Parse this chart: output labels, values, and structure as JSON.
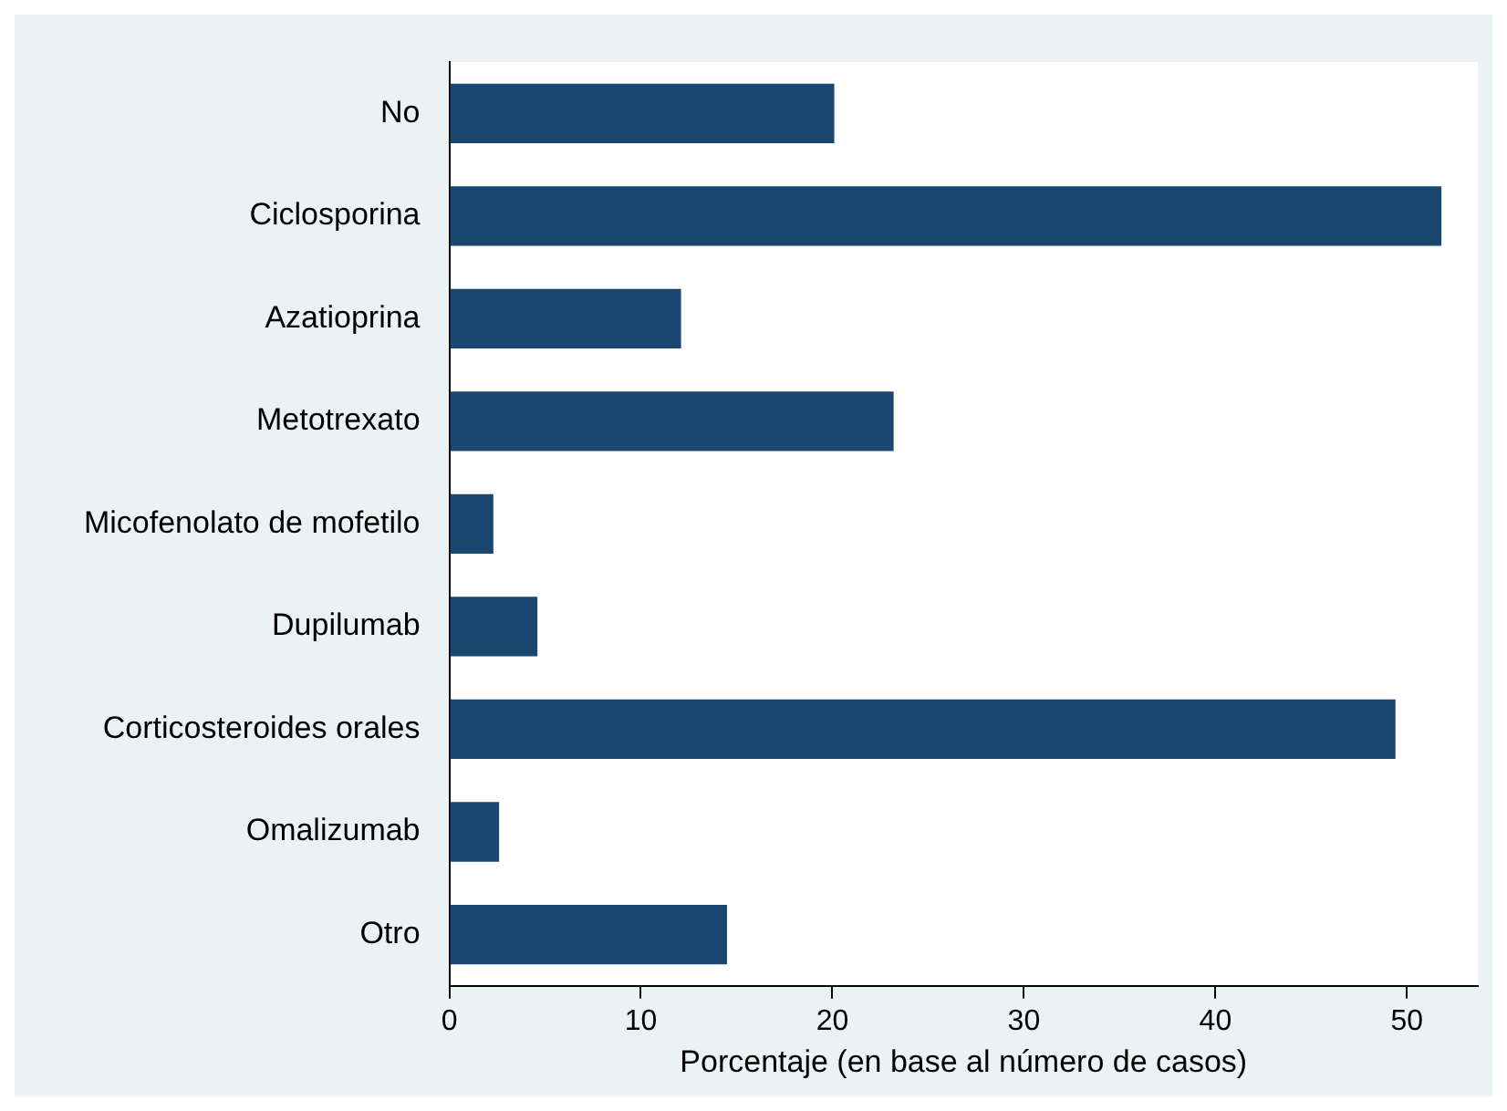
{
  "chart_data": {
    "type": "bar",
    "orientation": "horizontal",
    "xlabel": "Porcentaje (en base al número de casos)",
    "categories": [
      "No",
      "Ciclosporina",
      "Azatioprina",
      "Metotrexato",
      "Micofenolato de mofetilo",
      "Dupilumab",
      "Corticosteroides orales",
      "Omalizumab",
      "Otro"
    ],
    "values": [
      20.1,
      51.8,
      12.1,
      23.2,
      2.3,
      4.6,
      49.4,
      2.6,
      14.5
    ],
    "color": "#1a476f",
    "xlim": [
      0,
      53.7
    ],
    "xticks": [
      0,
      10,
      20,
      30,
      40,
      50
    ],
    "grid": false,
    "legend": false
  }
}
